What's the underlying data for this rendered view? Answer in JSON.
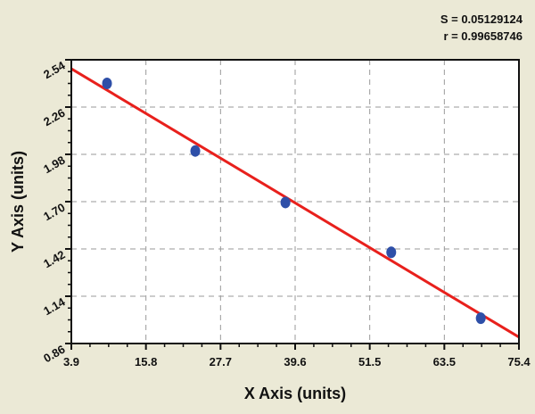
{
  "chart_data": {
    "type": "scatter",
    "title": "",
    "xlabel": "X Axis (units)",
    "ylabel": "Y Axis (units)",
    "xlim": [
      3.9,
      75.4
    ],
    "ylim": [
      0.86,
      2.54
    ],
    "xticks": [
      "3.9",
      "15.8",
      "27.7",
      "39.6",
      "51.5",
      "63.5",
      "75.4"
    ],
    "yticks": [
      "0.86",
      "1.14",
      "1.42",
      "1.70",
      "1.98",
      "2.26",
      "2.54"
    ],
    "grid": true,
    "points": [
      {
        "x": 9.6,
        "y": 2.4
      },
      {
        "x": 23.7,
        "y": 2.0
      },
      {
        "x": 38.1,
        "y": 1.695
      },
      {
        "x": 55.0,
        "y": 1.4
      },
      {
        "x": 69.3,
        "y": 1.01
      }
    ],
    "fit_line": {
      "x": [
        3.9,
        75.4
      ],
      "y": [
        2.487,
        0.898
      ]
    },
    "annotations": [
      "S = 0.05129124",
      "r = 0.99658746"
    ],
    "colors": {
      "points": "#2e4fa8",
      "fit_line": "#e8201c",
      "background": "#ebe9d6"
    }
  }
}
